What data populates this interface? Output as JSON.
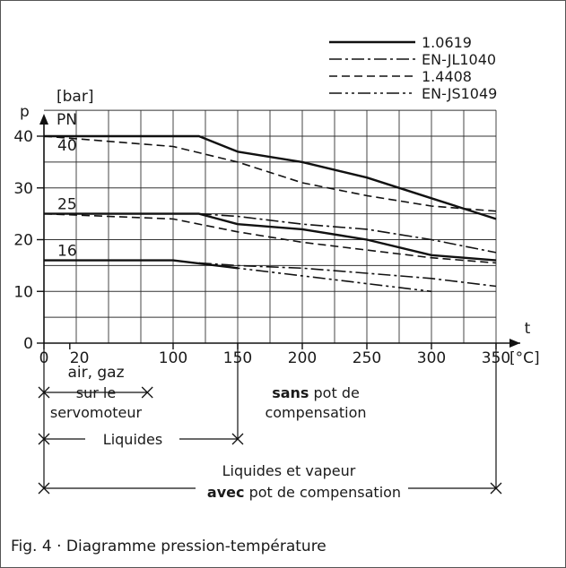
{
  "chart_data": {
    "type": "line",
    "y_unit_labels": [
      "p",
      "[bar]",
      "PN"
    ],
    "x_label": "t",
    "x_unit": "[°C]",
    "x_ticks": [
      {
        "value": 0,
        "label": "0"
      },
      {
        "value": 20,
        "label": "20"
      },
      {
        "value": 100,
        "label": "100"
      },
      {
        "value": 150,
        "label": "150"
      },
      {
        "value": 200,
        "label": "200"
      },
      {
        "value": 250,
        "label": "250"
      },
      {
        "value": 300,
        "label": "300"
      },
      {
        "value": 350,
        "label": "350"
      }
    ],
    "y_ticks": [
      {
        "value": 0,
        "label": "0"
      },
      {
        "value": 10,
        "label": "10"
      },
      {
        "value": 20,
        "label": "20"
      },
      {
        "value": 30,
        "label": "30"
      },
      {
        "value": 40,
        "label": "40"
      }
    ],
    "pn_labels": [
      {
        "value": 40,
        "label": "40"
      },
      {
        "value": 25,
        "label": "25"
      },
      {
        "value": 16,
        "label": "16"
      }
    ],
    "xlim": [
      0,
      350
    ],
    "ylim": [
      0,
      45
    ],
    "grid": true,
    "legend_position": "top-right",
    "series": [
      {
        "name": "1.0619",
        "dash": "solid",
        "curves": [
          [
            [
              0,
              40
            ],
            [
              120,
              40
            ],
            [
              150,
              37
            ],
            [
              200,
              35
            ],
            [
              250,
              32
            ],
            [
              300,
              28
            ],
            [
              350,
              24
            ]
          ],
          [
            [
              0,
              25
            ],
            [
              120,
              25
            ],
            [
              150,
              23
            ],
            [
              200,
              22
            ],
            [
              250,
              20
            ],
            [
              300,
              17
            ],
            [
              350,
              16
            ]
          ],
          [
            [
              0,
              16
            ],
            [
              100,
              16
            ],
            [
              150,
              14.5
            ]
          ]
        ]
      },
      {
        "name": "EN-JL1040",
        "dash": "dash-dot",
        "curves": [
          [
            [
              120,
              25
            ],
            [
              150,
              24.5
            ],
            [
              200,
              23
            ],
            [
              250,
              22
            ],
            [
              300,
              20
            ],
            [
              350,
              17.5
            ]
          ],
          [
            [
              120,
              15.5
            ],
            [
              150,
              15
            ],
            [
              200,
              14.5
            ],
            [
              250,
              13.5
            ],
            [
              300,
              12.5
            ],
            [
              350,
              11
            ]
          ]
        ]
      },
      {
        "name": "1.4408",
        "dash": "dashed",
        "curves": [
          [
            [
              0,
              40
            ],
            [
              100,
              38
            ],
            [
              150,
              35
            ],
            [
              200,
              31
            ],
            [
              250,
              28.5
            ],
            [
              300,
              26.5
            ],
            [
              350,
              25.5
            ]
          ],
          [
            [
              0,
              25
            ],
            [
              100,
              24
            ],
            [
              150,
              21.5
            ],
            [
              200,
              19.5
            ],
            [
              250,
              18
            ],
            [
              300,
              16.5
            ],
            [
              350,
              15.5
            ]
          ]
        ]
      },
      {
        "name": "EN-JS1049",
        "dash": "dash-dot-dot",
        "curves": [
          [
            [
              120,
              15.5
            ],
            [
              150,
              14.5
            ],
            [
              200,
              13
            ],
            [
              250,
              11.5
            ],
            [
              300,
              10
            ]
          ]
        ]
      }
    ],
    "ranges": [
      {
        "lines": [
          "air, gaz",
          "sur le",
          "servomoteur"
        ],
        "from": 0,
        "to": 80,
        "row": 1
      },
      {
        "lines": [
          "Liquides"
        ],
        "from": 0,
        "to": 150,
        "row": 2
      },
      {
        "lines": [
          "Liquides et vapeur"
        ],
        "bold_word": "avec",
        "rest": " pot de compensation",
        "from": 0,
        "to": 350,
        "row": 3
      }
    ],
    "sans_note": {
      "bold_word": "sans",
      "rest": " pot de",
      "line2": "compensation"
    }
  },
  "caption": "Fig. 4 · Diagramme pression-température"
}
